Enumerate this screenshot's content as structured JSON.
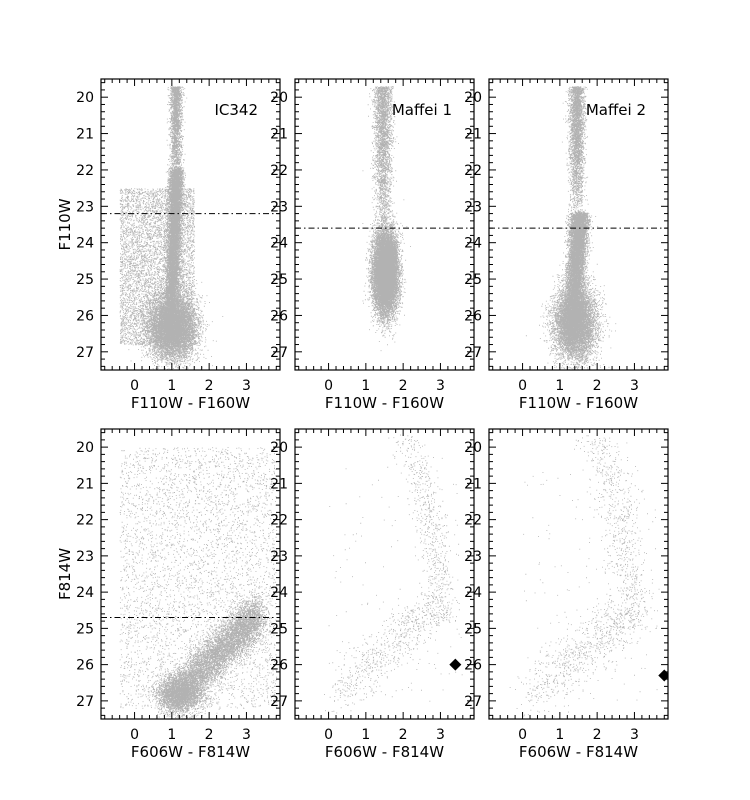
{
  "chart_data": [
    {
      "type": "scatter",
      "panel": "IC342 NIR",
      "label": "IC342",
      "xlabel": "",
      "ylabel": "F110W",
      "xlim": [
        -0.9,
        3.9
      ],
      "ylim": [
        27.5,
        19.5
      ],
      "xticks": [
        0,
        1,
        2,
        3
      ],
      "yticks": [
        20,
        21,
        22,
        23,
        24,
        25,
        26,
        27
      ],
      "threshold_line": {
        "y": 23.2,
        "style": "dash-dot"
      },
      "density_components": [
        {
          "kind": "rgb_branch",
          "color_top": 1.12,
          "color_bottom": 0.95,
          "mag_top": 22.0,
          "mag_bottom": 26.6,
          "width": 0.09,
          "weight": 0.35
        },
        {
          "kind": "blob",
          "x_center": 1.0,
          "y_center": 26.3,
          "x_sd": 0.32,
          "y_sd": 0.45,
          "weight": 0.35
        },
        {
          "kind": "diffuse",
          "x_range": [
            -0.4,
            1.6
          ],
          "y_range": [
            22.5,
            26.8
          ],
          "weight": 0.22
        },
        {
          "kind": "vertical_plume",
          "x_center": 1.1,
          "x_sd": 0.08,
          "y_range": [
            19.7,
            22.5
          ],
          "weight": 0.08
        }
      ]
    },
    {
      "type": "scatter",
      "panel": "Maffei 1 NIR",
      "label": "Maffei 1",
      "xlabel": "",
      "ylabel": "",
      "xlim": [
        -0.9,
        3.9
      ],
      "ylim": [
        27.5,
        19.5
      ],
      "xticks": [
        0,
        1,
        2,
        3
      ],
      "yticks": [
        20,
        21,
        22,
        23,
        24,
        25,
        26,
        27
      ],
      "threshold_line": {
        "y": 23.6,
        "style": "dash-dot"
      },
      "density_components": [
        {
          "kind": "blob",
          "x_center": 1.52,
          "y_center": 24.8,
          "x_sd": 0.16,
          "y_sd": 0.55,
          "weight": 0.85
        },
        {
          "kind": "vertical_plume",
          "x_center": 1.45,
          "x_sd": 0.12,
          "y_range": [
            19.7,
            23.5
          ],
          "weight": 0.15
        }
      ]
    },
    {
      "type": "scatter",
      "panel": "Maffei 2 NIR",
      "label": "Maffei 2",
      "xlabel": "",
      "ylabel": "",
      "xlim": [
        -0.9,
        3.9
      ],
      "ylim": [
        27.5,
        19.5
      ],
      "xticks": [
        0,
        1,
        2,
        3
      ],
      "yticks": [
        20,
        21,
        22,
        23,
        24,
        25,
        26,
        27
      ],
      "threshold_line": {
        "y": 23.6,
        "style": "dash-dot"
      },
      "density_components": [
        {
          "kind": "rgb_branch",
          "color_top": 1.52,
          "color_bottom": 1.3,
          "mag_top": 23.2,
          "mag_bottom": 26.8,
          "width": 0.12,
          "weight": 0.45
        },
        {
          "kind": "blob",
          "x_center": 1.4,
          "y_center": 26.2,
          "x_sd": 0.28,
          "y_sd": 0.5,
          "weight": 0.4
        },
        {
          "kind": "vertical_plume",
          "x_center": 1.45,
          "x_sd": 0.1,
          "y_range": [
            19.7,
            23.2
          ],
          "weight": 0.15
        }
      ]
    },
    {
      "type": "scatter",
      "panel": "IC342 optical",
      "label": "",
      "xlabel": "",
      "ylabel": "F814W",
      "xlim": [
        -0.9,
        3.9
      ],
      "ylim": [
        27.5,
        19.5
      ],
      "xticks": [
        0,
        1,
        2,
        3
      ],
      "yticks": [
        20,
        21,
        22,
        23,
        24,
        25,
        26,
        27
      ],
      "threshold_line": {
        "y": 24.7,
        "style": "dash-dot"
      },
      "density_components": [
        {
          "kind": "sloped_band",
          "x_start": 0.9,
          "y_start": 27.0,
          "x_end": 3.3,
          "y_end": 24.6,
          "width": 0.3,
          "weight": 0.5
        },
        {
          "kind": "blob",
          "x_center": 1.2,
          "y_center": 26.8,
          "x_sd": 0.3,
          "y_sd": 0.25,
          "weight": 0.2
        },
        {
          "kind": "diffuse",
          "x_range": [
            -0.4,
            3.8
          ],
          "y_range": [
            20.0,
            27.2
          ],
          "weight": 0.3
        }
      ]
    },
    {
      "type": "scatter",
      "panel": "Maffei 1 optical",
      "label": "",
      "xlabel": "",
      "ylabel": "",
      "xlim": [
        -0.9,
        3.9
      ],
      "ylim": [
        27.5,
        19.5
      ],
      "xticks": [
        0,
        1,
        2,
        3
      ],
      "yticks": [
        20,
        21,
        22,
        23,
        24,
        25,
        26,
        27
      ],
      "marker": {
        "x": 3.4,
        "y": 26.0,
        "shape": "diamond"
      },
      "density_components": [
        {
          "kind": "sloped_band",
          "x_start": 0.1,
          "y_start": 26.9,
          "x_end": 2.8,
          "y_end": 24.4,
          "width": 0.35,
          "weight": 0.45
        },
        {
          "kind": "curved_branch",
          "x_top": 1.9,
          "y_top": 19.7,
          "x_bottom": 3.1,
          "y_bottom": 24.8,
          "width": 0.22,
          "weight": 0.45
        },
        {
          "kind": "diffuse",
          "x_range": [
            0.0,
            3.6
          ],
          "y_range": [
            20.5,
            27.0
          ],
          "weight": 0.1
        }
      ]
    },
    {
      "type": "scatter",
      "panel": "Maffei 2 optical",
      "label": "",
      "xlabel": "",
      "ylabel": "",
      "xlim": [
        -0.9,
        3.9
      ],
      "ylim": [
        27.5,
        19.5
      ],
      "xticks": [
        0,
        1,
        2,
        3
      ],
      "yticks": [
        20,
        21,
        22,
        23,
        24,
        25,
        26,
        27
      ],
      "marker": {
        "x": 3.8,
        "y": 26.3,
        "shape": "diamond"
      },
      "density_components": [
        {
          "kind": "sloped_band",
          "x_start": 0.1,
          "y_start": 27.0,
          "x_end": 2.8,
          "y_end": 24.6,
          "width": 0.4,
          "weight": 0.45
        },
        {
          "kind": "curved_branch",
          "x_top": 1.8,
          "y_top": 19.7,
          "x_bottom": 3.0,
          "y_bottom": 25.0,
          "width": 0.28,
          "weight": 0.45
        },
        {
          "kind": "diffuse",
          "x_range": [
            0.0,
            3.6
          ],
          "y_range": [
            20.5,
            27.0
          ],
          "weight": 0.1
        }
      ]
    }
  ],
  "axis_labels": {
    "top_xlabel": "F110W - F160W",
    "bottom_xlabel": "F606W - F814W",
    "top_ylabel": "F110W",
    "bottom_ylabel": "F814W"
  }
}
